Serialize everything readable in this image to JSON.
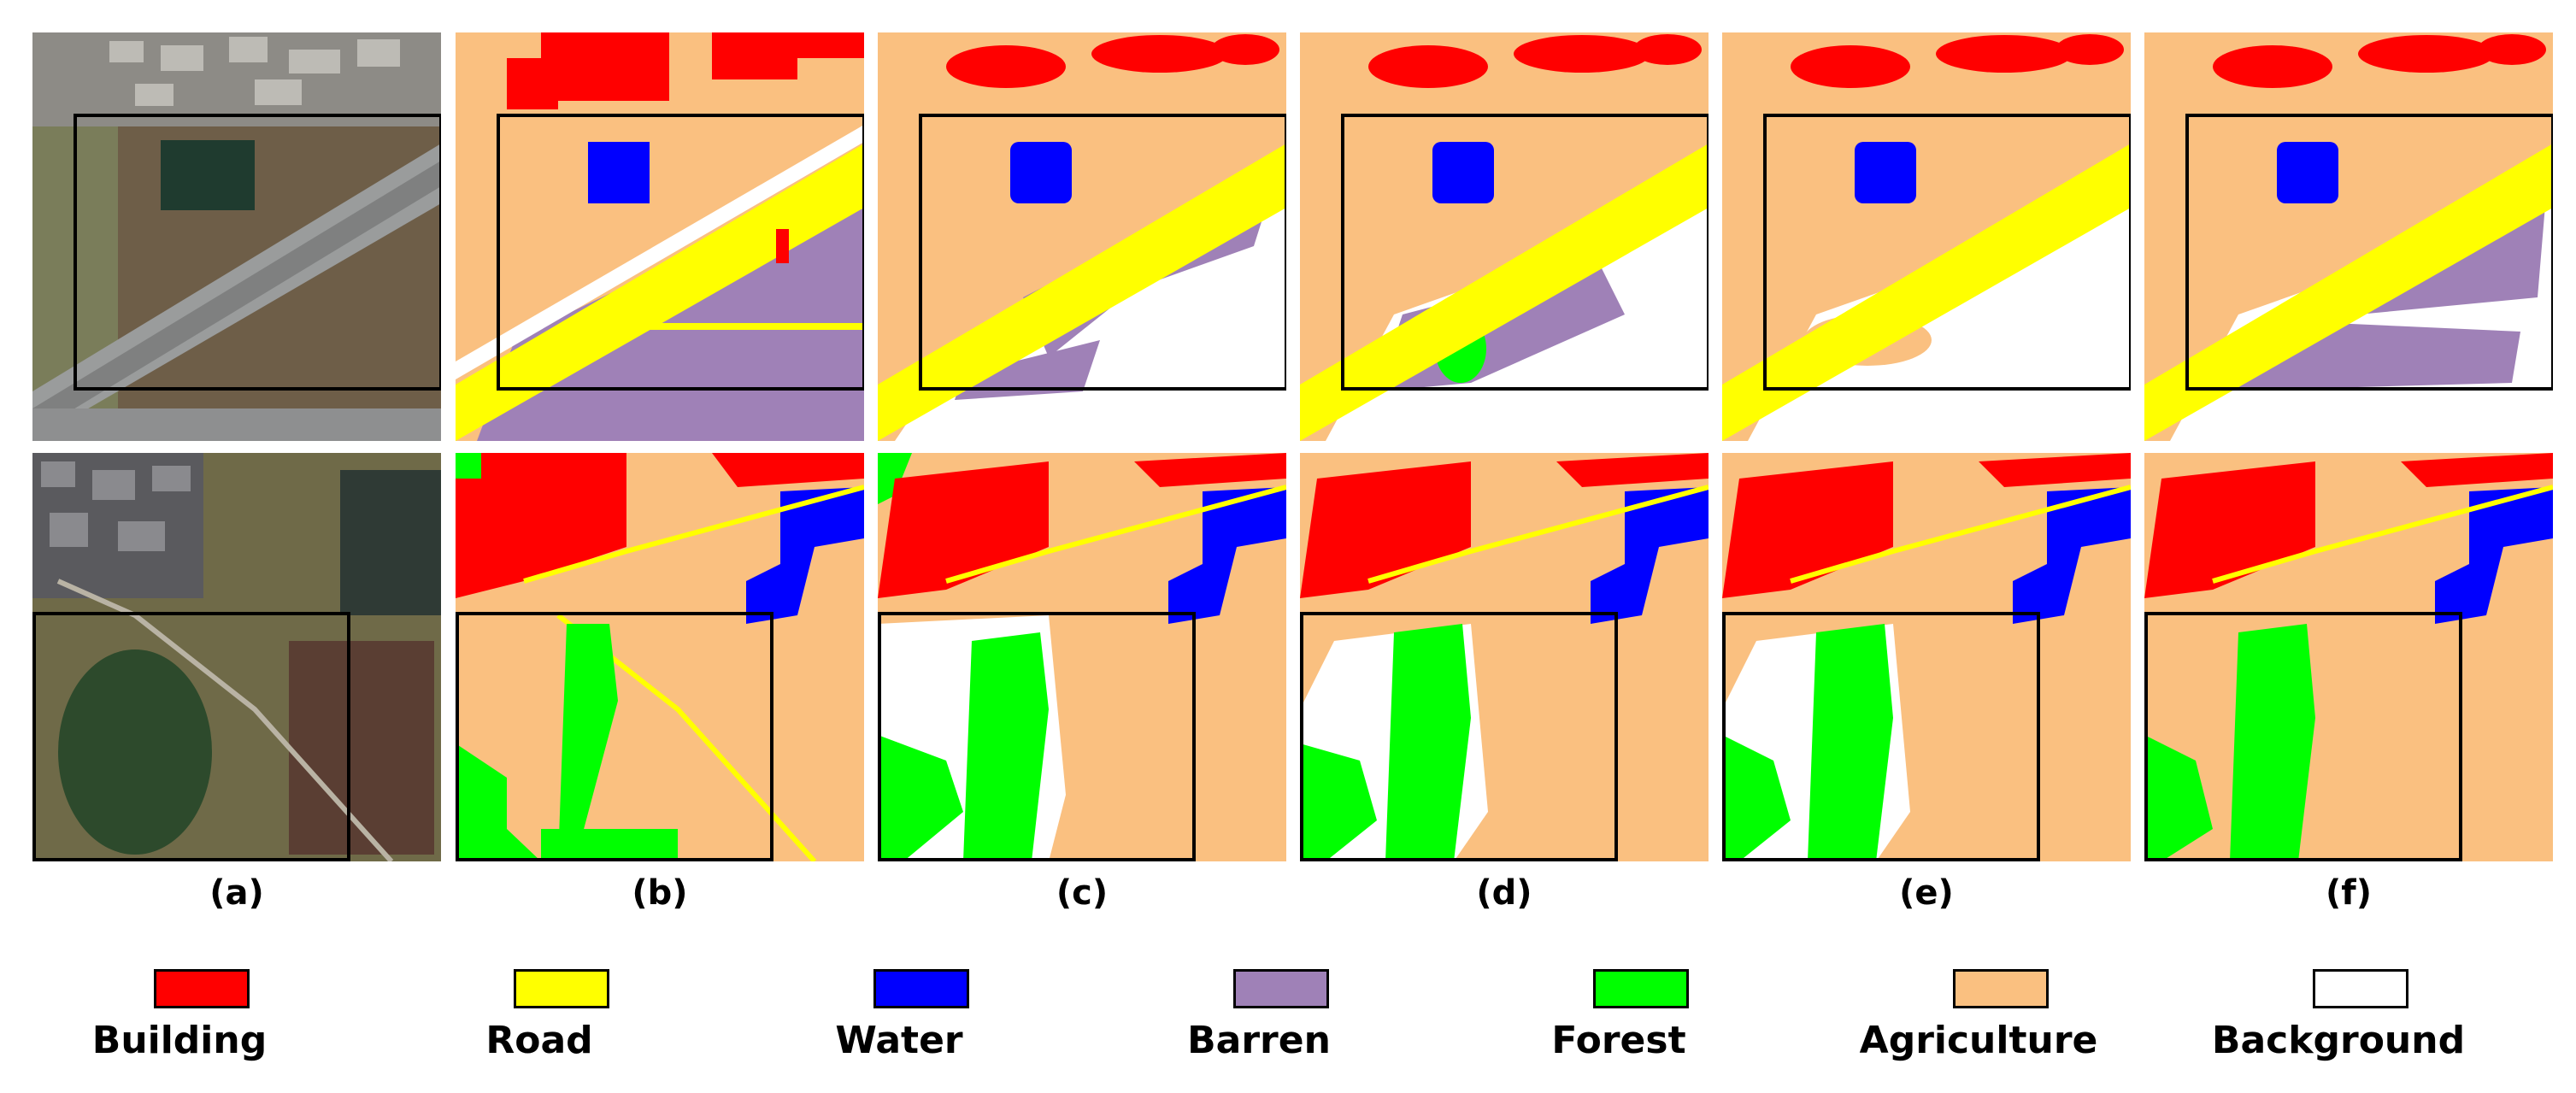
{
  "panel_labels": [
    "(a)",
    "(b)",
    "(c)",
    "(d)",
    "(e)",
    "(f)"
  ],
  "legend": [
    {
      "label": "Building",
      "color": "#ff0000"
    },
    {
      "label": "Road",
      "color": "#ffff00"
    },
    {
      "label": "Water",
      "color": "#0000ff"
    },
    {
      "label": "Barren",
      "color": "#9f81b7"
    },
    {
      "label": "Forest",
      "color": "#00ff00"
    },
    {
      "label": "Agriculture",
      "color": "#fac080"
    },
    {
      "label": "Background",
      "color": "#ffffff"
    }
  ]
}
